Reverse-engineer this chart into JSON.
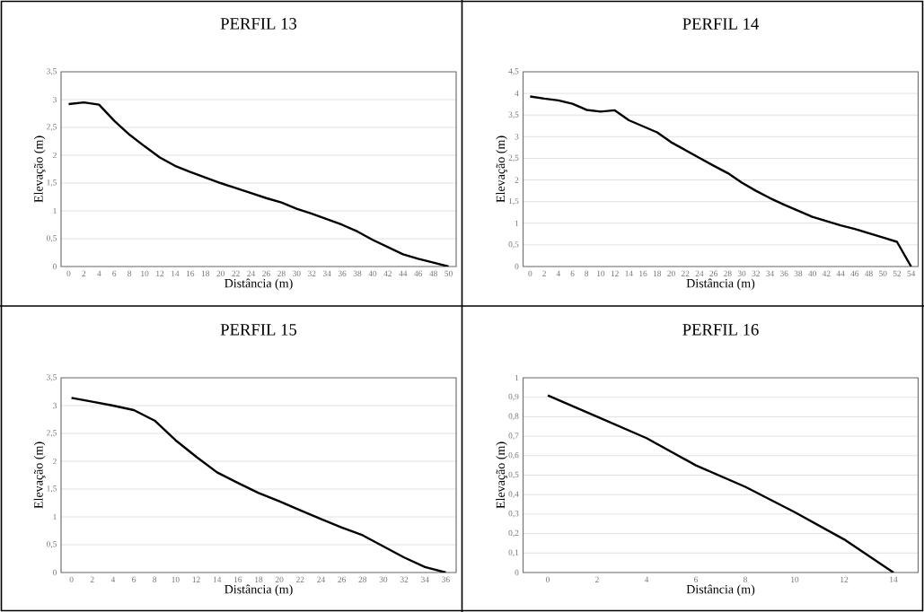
{
  "chart_data": [
    {
      "type": "line",
      "title": "PERFIL 13",
      "xlabel": "Distância (m)",
      "ylabel": "Elevação (m)",
      "color": "#000000",
      "grid": "y",
      "marker": "none",
      "line_style": "solid",
      "categories": [
        "0",
        "2",
        "4",
        "6",
        "8",
        "10",
        "12",
        "14",
        "16",
        "18",
        "20",
        "22",
        "24",
        "26",
        "28",
        "30",
        "32",
        "34",
        "36",
        "38",
        "40",
        "42",
        "44",
        "46",
        "48",
        "50"
      ],
      "values": [
        2.92,
        2.95,
        2.91,
        2.62,
        2.37,
        2.16,
        1.96,
        1.81,
        1.7,
        1.6,
        1.5,
        1.41,
        1.32,
        1.23,
        1.15,
        1.04,
        0.95,
        0.85,
        0.75,
        0.63,
        0.48,
        0.35,
        0.22,
        0.14,
        0.07,
        0.0
      ],
      "ylim": [
        0,
        3.5
      ],
      "yticks": [
        0,
        {
          "value": 0.5,
          "label": "0,5"
        },
        1,
        {
          "value": 1.5,
          "label": "1,5"
        },
        2,
        {
          "value": 2.5,
          "label": "2,5"
        },
        3,
        {
          "value": 3.5,
          "label": "3,5"
        }
      ]
    },
    {
      "type": "line",
      "title": "PERFIL 14",
      "xlabel": "Distância (m)",
      "ylabel": "Elevação (m)",
      "color": "#000000",
      "grid": "y",
      "marker": "none",
      "line_style": "solid",
      "categories": [
        "0",
        "2",
        "4",
        "6",
        "8",
        "10",
        "12",
        "14",
        "16",
        "18",
        "20",
        "22",
        "24",
        "26",
        "28",
        "30",
        "32",
        "34",
        "36",
        "38",
        "40",
        "42",
        "44",
        "46",
        "48",
        "50",
        "52",
        "54"
      ],
      "values": [
        3.93,
        3.88,
        3.84,
        3.76,
        3.62,
        3.58,
        3.61,
        3.38,
        3.24,
        3.1,
        2.87,
        2.69,
        2.51,
        2.33,
        2.16,
        1.94,
        1.75,
        1.58,
        1.43,
        1.29,
        1.15,
        1.05,
        0.95,
        0.87,
        0.77,
        0.67,
        0.57,
        0.0
      ],
      "ylim": [
        0,
        4.5
      ],
      "yticks": [
        0,
        {
          "value": 0.5,
          "label": "0,5"
        },
        1,
        {
          "value": 1.5,
          "label": "1,5"
        },
        2,
        {
          "value": 2.5,
          "label": "2,5"
        },
        3,
        {
          "value": 3.5,
          "label": "3,5"
        },
        4,
        {
          "value": 4.5,
          "label": "4,5"
        }
      ]
    },
    {
      "type": "line",
      "title": "PERFIL 15",
      "xlabel": "Distância (m)",
      "ylabel": "Elevação (m)",
      "color": "#000000",
      "grid": "y",
      "marker": "none",
      "line_style": "solid",
      "categories": [
        "0",
        "2",
        "4",
        "6",
        "8",
        "10",
        "12",
        "14",
        "16",
        "18",
        "20",
        "22",
        "24",
        "26",
        "28",
        "30",
        "32",
        "34",
        "36"
      ],
      "values": [
        3.14,
        3.07,
        3.0,
        2.92,
        2.73,
        2.38,
        2.08,
        1.8,
        1.61,
        1.43,
        1.28,
        1.12,
        0.96,
        0.81,
        0.67,
        0.47,
        0.27,
        0.1,
        0.0
      ],
      "ylim": [
        0,
        3.5
      ],
      "yticks": [
        0,
        {
          "value": 0.5,
          "label": "0,5"
        },
        1,
        {
          "value": 1.5,
          "label": "1,5"
        },
        2,
        {
          "value": 2.5,
          "label": "2,5"
        },
        3,
        {
          "value": 3.5,
          "label": "3,5"
        }
      ]
    },
    {
      "type": "line",
      "title": "PERFIL 16",
      "xlabel": "Distância (m)",
      "ylabel": "Elevação (m)",
      "color": "#000000",
      "grid": "y",
      "marker": "none",
      "line_style": "solid",
      "categories": [
        "0",
        "2",
        "4",
        "6",
        "8",
        "10",
        "12",
        "14"
      ],
      "values": [
        0.91,
        0.8,
        0.69,
        0.55,
        0.44,
        0.31,
        0.17,
        0.0
      ],
      "ylim": [
        0,
        1
      ],
      "yticks": [
        0,
        {
          "value": 0.1,
          "label": "0,1"
        },
        {
          "value": 0.2,
          "label": "0,2"
        },
        {
          "value": 0.3,
          "label": "0,3"
        },
        {
          "value": 0.4,
          "label": "0,4"
        },
        {
          "value": 0.5,
          "label": "0,5"
        },
        {
          "value": 0.6,
          "label": "0,6"
        },
        {
          "value": 0.7,
          "label": "0,7"
        },
        {
          "value": 0.8,
          "label": "0,8"
        },
        {
          "value": 0.9,
          "label": "0,9"
        },
        1
      ]
    }
  ]
}
